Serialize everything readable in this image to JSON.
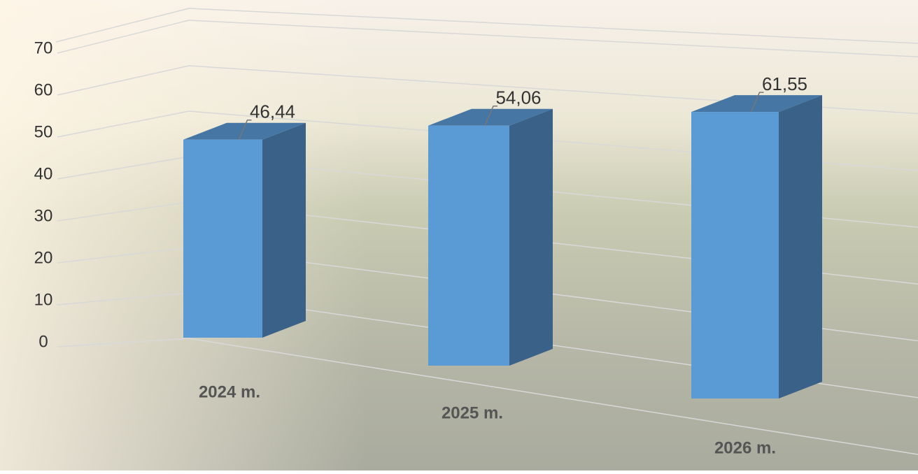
{
  "chart_data": {
    "type": "bar3d",
    "categories": [
      "2024 m.",
      "2025 m.",
      "2026 m."
    ],
    "values": [
      46.44,
      54.06,
      61.55
    ],
    "value_labels": [
      "46,44",
      "54,06",
      "61,55"
    ],
    "color": "#5b9bd5",
    "ylim": [
      0,
      80
    ],
    "yticks": [
      0,
      10,
      20,
      30,
      40,
      50,
      60,
      70
    ],
    "grid": true
  }
}
